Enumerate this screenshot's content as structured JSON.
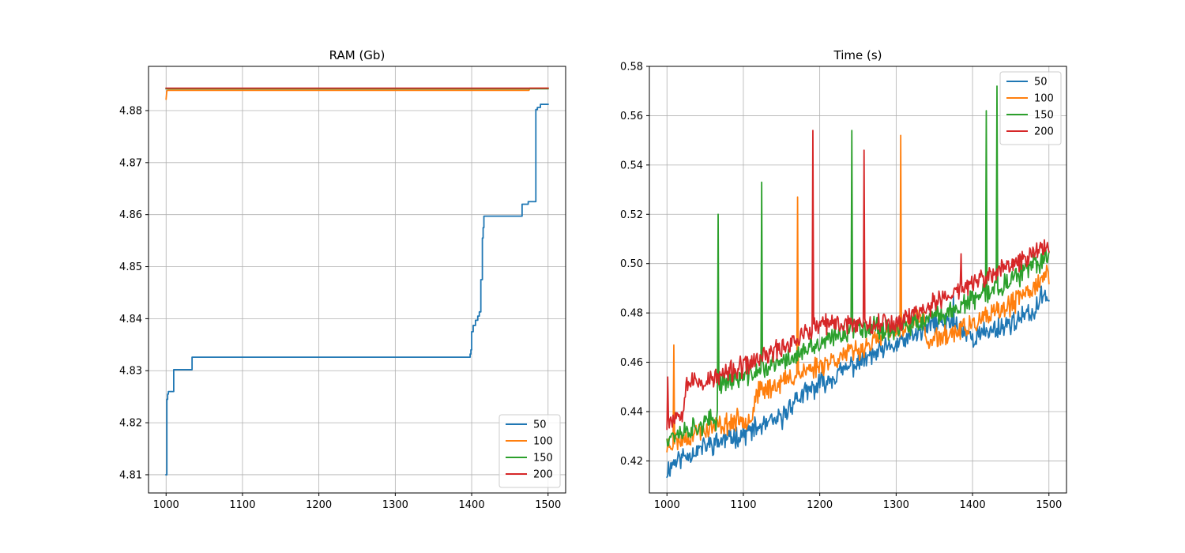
{
  "chart_data": [
    {
      "type": "line",
      "title": "RAM (Gb)",
      "xlabel": "",
      "ylabel": "",
      "xlim": [
        977,
        1523
      ],
      "ylim": [
        4.8065,
        4.8885
      ],
      "xticks": [
        1000,
        1100,
        1200,
        1300,
        1400,
        1500
      ],
      "yticks": [
        4.81,
        4.82,
        4.83,
        4.84,
        4.85,
        4.86,
        4.87,
        4.88
      ],
      "ytick_decimals": 2,
      "grid": true,
      "legend_position": "lower right",
      "series": [
        {
          "name": "50",
          "color": "#1f77b4",
          "step": true,
          "x": [
            1000,
            1001,
            1002,
            1003,
            1004,
            1005,
            1008,
            1010,
            1033,
            1034,
            1397,
            1398,
            1399,
            1400,
            1402,
            1405,
            1408,
            1410,
            1412,
            1414,
            1415,
            1416,
            1418,
            1420,
            1450,
            1460,
            1466,
            1470,
            1474,
            1480,
            1484,
            1486,
            1490,
            1500
          ],
          "y": [
            4.81,
            4.8245,
            4.8255,
            4.826,
            4.826,
            4.826,
            4.826,
            4.8302,
            4.8302,
            4.8326,
            4.8326,
            4.8332,
            4.834,
            4.8375,
            4.8387,
            4.8397,
            4.8405,
            4.8413,
            4.8475,
            4.8555,
            4.8575,
            4.8597,
            4.8597,
            4.8597,
            4.8597,
            4.8597,
            4.862,
            4.862,
            4.8625,
            4.8625,
            4.8802,
            4.8806,
            4.8812,
            4.8812
          ]
        },
        {
          "name": "100",
          "color": "#ff7f0e",
          "step": false,
          "x": [
            1000,
            1001,
            1002,
            1010,
            1100,
            1200,
            1300,
            1400,
            1475,
            1476,
            1500
          ],
          "y": [
            4.8822,
            4.8838,
            4.8839,
            4.8839,
            4.8839,
            4.8839,
            4.8839,
            4.8839,
            4.8839,
            4.8843,
            4.8843
          ]
        },
        {
          "name": "150",
          "color": "#2ca02c",
          "step": false,
          "x": [
            1000,
            1500
          ],
          "y": [
            4.8842,
            4.8842
          ]
        },
        {
          "name": "200",
          "color": "#d62728",
          "step": false,
          "x": [
            1000,
            1500
          ],
          "y": [
            4.8843,
            4.8843
          ]
        }
      ]
    },
    {
      "type": "line",
      "title": "Time (s)",
      "xlabel": "",
      "ylabel": "",
      "xlim": [
        977,
        1523
      ],
      "ylim": [
        0.407,
        0.58
      ],
      "xticks": [
        1000,
        1100,
        1200,
        1300,
        1400,
        1500
      ],
      "yticks": [
        0.42,
        0.44,
        0.46,
        0.48,
        0.5,
        0.52,
        0.54,
        0.56,
        0.58
      ],
      "ytick_decimals": 2,
      "grid": true,
      "legend_position": "upper right",
      "series": [
        {
          "name": "50",
          "color": "#1f77b4",
          "noise": 0.0035,
          "seed": 11,
          "x_end": 1500,
          "trend": [
            [
              1000,
              0.416
            ],
            [
              1010,
              0.42
            ],
            [
              1050,
              0.426
            ],
            [
              1100,
              0.431
            ],
            [
              1150,
              0.437
            ],
            [
              1165,
              0.444
            ],
            [
              1200,
              0.451
            ],
            [
              1250,
              0.46
            ],
            [
              1300,
              0.467
            ],
            [
              1330,
              0.472
            ],
            [
              1350,
              0.476
            ],
            [
              1375,
              0.476
            ],
            [
              1400,
              0.47
            ],
            [
              1450,
              0.476
            ],
            [
              1480,
              0.48
            ],
            [
              1490,
              0.486
            ],
            [
              1500,
              0.488
            ]
          ],
          "spikes": [
            [
              1375,
              0.487
            ]
          ]
        },
        {
          "name": "100",
          "color": "#ff7f0e",
          "noise": 0.0035,
          "seed": 23,
          "x_end": 1500,
          "trend": [
            [
              1000,
              0.426
            ],
            [
              1040,
              0.432
            ],
            [
              1100,
              0.437
            ],
            [
              1112,
              0.438
            ],
            [
              1116,
              0.447
            ],
            [
              1150,
              0.452
            ],
            [
              1200,
              0.459
            ],
            [
              1250,
              0.465
            ],
            [
              1300,
              0.473
            ],
            [
              1335,
              0.478
            ],
            [
              1340,
              0.468
            ],
            [
              1400,
              0.475
            ],
            [
              1450,
              0.483
            ],
            [
              1500,
              0.496
            ]
          ],
          "spikes": [
            [
              1009,
              0.467
            ],
            [
              1171,
              0.527
            ],
            [
              1306,
              0.552
            ]
          ]
        },
        {
          "name": "150",
          "color": "#2ca02c",
          "noise": 0.0035,
          "seed": 37,
          "x_end": 1500,
          "trend": [
            [
              1000,
              0.43
            ],
            [
              1030,
              0.433
            ],
            [
              1066,
              0.437
            ],
            [
              1068,
              0.452
            ],
            [
              1100,
              0.454
            ],
            [
              1150,
              0.46
            ],
            [
              1200,
              0.467
            ],
            [
              1250,
              0.475
            ],
            [
              1300,
              0.473
            ],
            [
              1350,
              0.478
            ],
            [
              1400,
              0.485
            ],
            [
              1450,
              0.493
            ],
            [
              1500,
              0.503
            ]
          ],
          "spikes": [
            [
              1067,
              0.52
            ],
            [
              1124,
              0.533
            ],
            [
              1242,
              0.554
            ],
            [
              1418,
              0.562
            ],
            [
              1432,
              0.572
            ]
          ]
        },
        {
          "name": "200",
          "color": "#d62728",
          "noise": 0.0035,
          "seed": 53,
          "x_end": 1500,
          "trend": [
            [
              1000,
              0.436
            ],
            [
              1020,
              0.44
            ],
            [
              1025,
              0.452
            ],
            [
              1050,
              0.452
            ],
            [
              1100,
              0.458
            ],
            [
              1150,
              0.466
            ],
            [
              1200,
              0.475
            ],
            [
              1250,
              0.476
            ],
            [
              1300,
              0.476
            ],
            [
              1350,
              0.484
            ],
            [
              1400,
              0.492
            ],
            [
              1450,
              0.499
            ],
            [
              1500,
              0.508
            ]
          ],
          "spikes": [
            [
              1001,
              0.454
            ],
            [
              1191,
              0.554
            ],
            [
              1258,
              0.546
            ],
            [
              1385,
              0.504
            ]
          ]
        }
      ]
    }
  ]
}
